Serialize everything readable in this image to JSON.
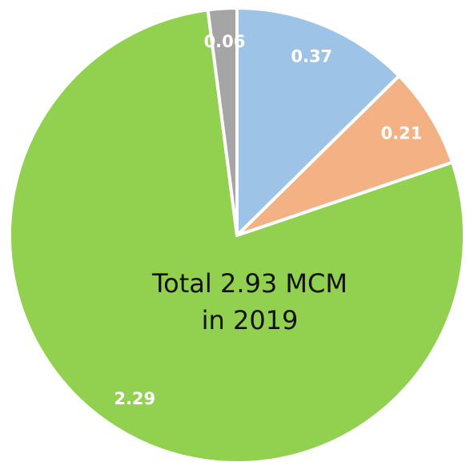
{
  "chart_data": {
    "type": "pie",
    "values": [
      0.37,
      0.21,
      2.29,
      0.06
    ],
    "colors": [
      "#9dc3e6",
      "#f4b183",
      "#92d050",
      "#a5a5a5"
    ],
    "annotation": [
      "Total 2.93 MCM",
      "in 2019"
    ]
  }
}
